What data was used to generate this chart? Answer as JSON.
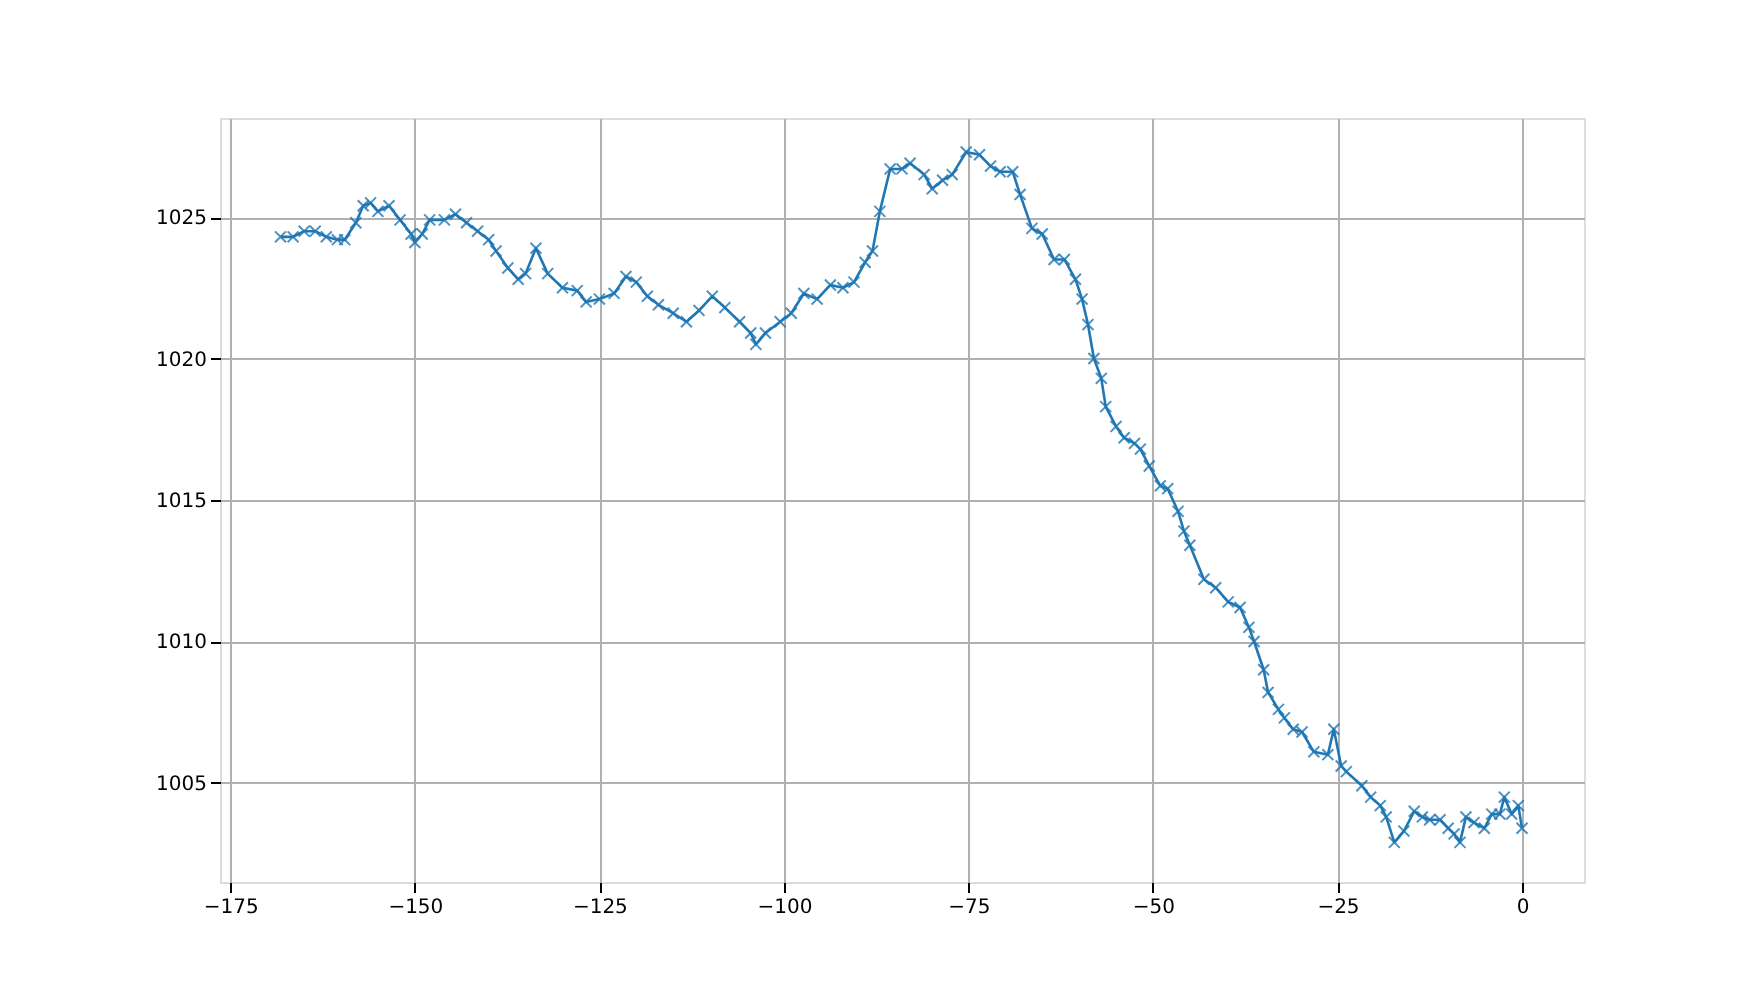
{
  "chart_data": {
    "type": "line",
    "x": [
      -168.2,
      -166.5,
      -165,
      -163.5,
      -162,
      -160.5,
      -159.5,
      -158,
      -157,
      -156,
      -155,
      -153.5,
      -152,
      -150.5,
      -150,
      -149,
      -148,
      -146,
      -144.5,
      -143,
      -141.5,
      -140,
      -139,
      -137.4,
      -136,
      -135,
      -133.6,
      -132,
      -130,
      -128,
      -126.8,
      -125,
      -123,
      -121.4,
      -120,
      -118.5,
      -117,
      -115,
      -113.2,
      -111.5,
      -109.7,
      -108,
      -106,
      -104.5,
      -103.8,
      -102.5,
      -100.5,
      -99,
      -97.3,
      -95.5,
      -93.7,
      -92,
      -90.5,
      -89,
      -88,
      -87,
      -85.6,
      -84,
      -82.9,
      -81,
      -79.9,
      -78.5,
      -77.2,
      -75.3,
      -73.5,
      -72,
      -70.7,
      -69,
      -68,
      -66.4,
      -65,
      -63.4,
      -62,
      -60.5,
      -59.6,
      -58.8,
      -58,
      -57,
      -56.4,
      -55,
      -53.9,
      -52.5,
      -51.7,
      -50.5,
      -49,
      -48,
      -46.6,
      -45.8,
      -45,
      -43.1,
      -41.5,
      -39.8,
      -38.2,
      -37,
      -36.3,
      -35,
      -34.4,
      -33,
      -32.2,
      -31,
      -29.8,
      -28.2,
      -26.3,
      -25.5,
      -24.5,
      -23.8,
      -21.7,
      -20.5,
      -19.2,
      -18.4,
      -17.3,
      -16,
      -14.6,
      -13.5,
      -12.5,
      -11.1,
      -10,
      -9.2,
      -8.4,
      -7.6,
      -6.5,
      -5.1,
      -4.1,
      -3,
      -2.4,
      -1.4,
      -0.5,
      0
    ],
    "series": [
      {
        "color": "#1f77b4",
        "values": [
          1024.3,
          1024.3,
          1024.5,
          1024.5,
          1024.3,
          1024.2,
          1024.2,
          1024.8,
          1025.4,
          1025.5,
          1025.2,
          1025.4,
          1024.9,
          1024.4,
          1024.1,
          1024.4,
          1024.9,
          1024.9,
          1025.1,
          1024.8,
          1024.5,
          1024.2,
          1023.8,
          1023.2,
          1022.8,
          1023.0,
          1023.9,
          1023.0,
          1022.5,
          1022.4,
          1022.0,
          1022.1,
          1022.3,
          1022.9,
          1022.7,
          1022.2,
          1021.9,
          1021.6,
          1021.3,
          1021.7,
          1022.2,
          1021.8,
          1021.3,
          1020.9,
          1020.5,
          1020.9,
          1021.3,
          1021.6,
          1022.3,
          1022.1,
          1022.6,
          1022.5,
          1022.7,
          1023.4,
          1023.8,
          1025.2,
          1026.7,
          1026.7,
          1026.9,
          1026.5,
          1026.0,
          1026.3,
          1026.5,
          1027.3,
          1027.2,
          1026.8,
          1026.6,
          1026.6,
          1025.8,
          1024.6,
          1024.4,
          1023.5,
          1023.5,
          1022.8,
          1022.1,
          1021.2,
          1020.0,
          1019.3,
          1018.3,
          1017.6,
          1017.2,
          1017.0,
          1016.8,
          1016.2,
          1015.5,
          1015.4,
          1014.6,
          1013.9,
          1013.4,
          1012.2,
          1011.9,
          1011.4,
          1011.2,
          1010.5,
          1010.0,
          1009.0,
          1008.2,
          1007.6,
          1007.3,
          1006.9,
          1006.8,
          1006.1,
          1006.0,
          1006.9,
          1005.6,
          1005.4,
          1004.9,
          1004.5,
          1004.2,
          1003.8,
          1002.9,
          1003.3,
          1004.0,
          1003.8,
          1003.7,
          1003.7,
          1003.4,
          1003.2,
          1002.9,
          1003.8,
          1003.6,
          1003.4,
          1003.9,
          1003.9,
          1004.5,
          1003.9,
          1004.2,
          1003.4
        ]
      }
    ],
    "xlim": [
      -176.4,
      8.4
    ],
    "ylim": [
      1001.5,
      1028.5
    ],
    "xticks": [
      -175,
      -150,
      -125,
      -100,
      -75,
      -50,
      -25,
      0
    ],
    "yticks": [
      1005,
      1010,
      1015,
      1020,
      1025
    ],
    "grid": true,
    "marker": "cross",
    "line_style": "solid"
  }
}
